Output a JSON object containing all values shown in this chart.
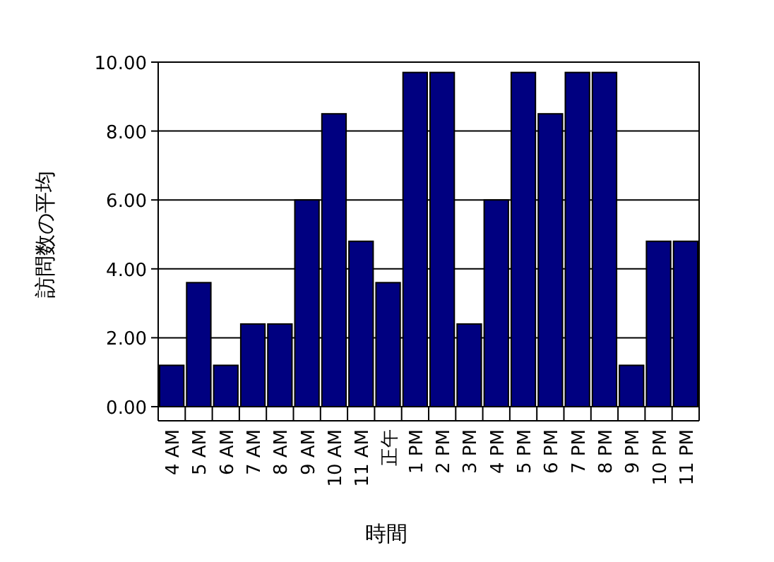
{
  "chart_data": {
    "type": "bar",
    "xlabel": "時間",
    "ylabel": "訪問数の平均",
    "categories": [
      "4 AM",
      "5 AM",
      "6 AM",
      "7 AM",
      "8 AM",
      "9 AM",
      "10 AM",
      "11 AM",
      "正午",
      "1 PM",
      "2 PM",
      "3 PM",
      "4 PM",
      "5 PM",
      "6 PM",
      "7 PM",
      "8 PM",
      "9 PM",
      "10 PM",
      "11 PM"
    ],
    "values": [
      1.2,
      3.6,
      1.2,
      2.4,
      2.4,
      6.0,
      8.5,
      4.8,
      3.6,
      9.7,
      9.7,
      2.4,
      6.0,
      9.7,
      8.5,
      9.7,
      9.7,
      1.2,
      4.8,
      4.8
    ],
    "color": "#000080",
    "ylim": [
      0,
      10
    ],
    "yticks": [
      {
        "value": 0,
        "label": "0.00"
      },
      {
        "value": 2,
        "label": "2.00"
      },
      {
        "value": 4,
        "label": "4.00"
      },
      {
        "value": 6,
        "label": "6.00"
      },
      {
        "value": 8,
        "label": "8.00"
      },
      {
        "value": 10,
        "label": "10.00"
      }
    ],
    "grid": "y"
  }
}
